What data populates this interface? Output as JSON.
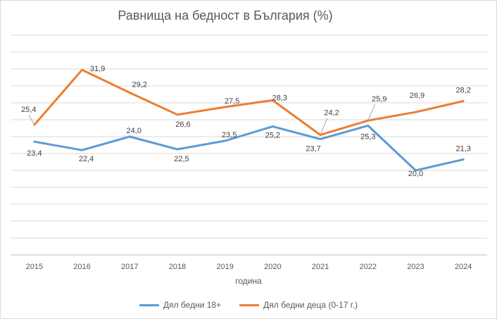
{
  "chart_data": {
    "type": "line",
    "title": "Равнища на бедност в България (%)",
    "xlabel": "година",
    "ylabel": "",
    "categories": [
      "2015",
      "2016",
      "2017",
      "2018",
      "2019",
      "2020",
      "2021",
      "2022",
      "2023",
      "2024"
    ],
    "ylim": [
      10,
      36
    ],
    "y_gridline_step": 2,
    "y_tick_labels_shown": false,
    "grid": true,
    "legend_position": "bottom",
    "series": [
      {
        "name": "Дял бедни 18+",
        "color": "#5b9bd5",
        "values": [
          23.4,
          22.4,
          24.0,
          22.5,
          23.5,
          25.2,
          23.7,
          25.3,
          20.0,
          21.3
        ],
        "labels": [
          "23,4",
          "22,4",
          "24,0",
          "22,5",
          "23,5",
          "25,2",
          "23,7",
          "25,3",
          "20,0",
          "21,3"
        ]
      },
      {
        "name": "Дял бедни деца (0-17 г.)",
        "color": "#ed7d31",
        "values": [
          25.4,
          31.9,
          29.2,
          26.6,
          27.5,
          28.3,
          24.2,
          25.9,
          26.9,
          28.2
        ],
        "labels": [
          "25,4",
          "31,9",
          "29,2",
          "26,6",
          "27,5",
          "28,3",
          "24,2",
          "25,9",
          "26,9",
          "28,2"
        ]
      }
    ]
  }
}
